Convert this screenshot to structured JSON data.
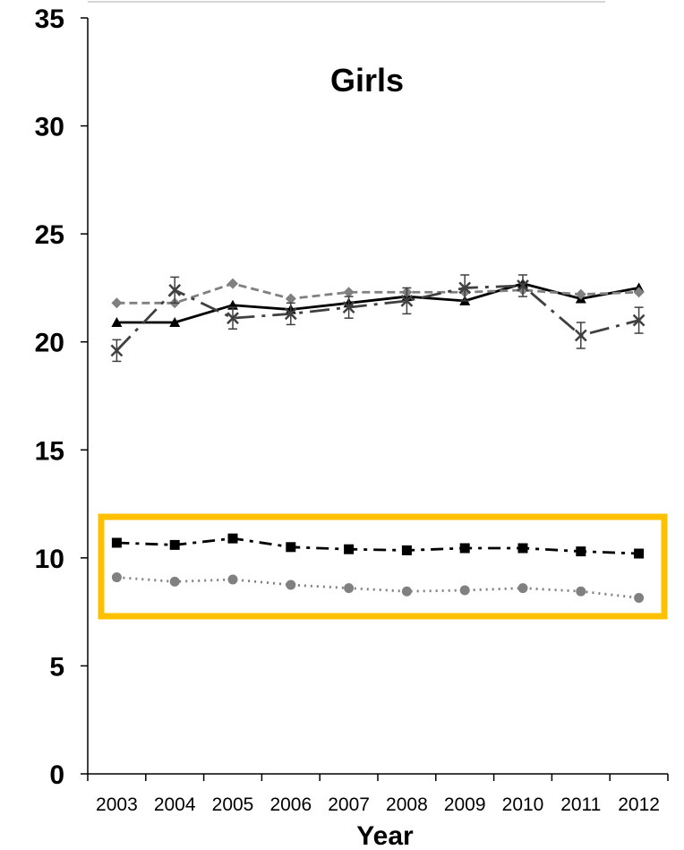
{
  "chart_data": {
    "type": "line",
    "title": "Girls",
    "xlabel": "Year",
    "ylabel": "",
    "ylim": [
      0,
      35
    ],
    "yticks": [
      0,
      5,
      10,
      15,
      20,
      25,
      30,
      35
    ],
    "categories": [
      "2003",
      "2004",
      "2005",
      "2006",
      "2007",
      "2008",
      "2009",
      "2010",
      "2011",
      "2012"
    ],
    "grid": false,
    "legend": "none",
    "highlight_box": {
      "y_range": [
        7.3,
        11.9
      ],
      "color": "#FFC000"
    },
    "series": [
      {
        "marker": "triangle",
        "line_style": "solid",
        "color": "#000000",
        "values": [
          20.9,
          20.9,
          21.7,
          21.5,
          21.8,
          22.1,
          21.9,
          22.7,
          22.0,
          22.5
        ]
      },
      {
        "marker": "diamond",
        "line_style": "dashed",
        "color": "#808080",
        "values": [
          21.8,
          21.8,
          22.7,
          22.0,
          22.3,
          22.3,
          22.3,
          22.4,
          22.2,
          22.3
        ]
      },
      {
        "marker": "x",
        "line_style": "long-dash-dot",
        "color": "#404040",
        "values": [
          19.6,
          22.4,
          21.1,
          21.3,
          21.6,
          21.9,
          22.5,
          22.6,
          20.3,
          21.0
        ],
        "error": [
          0.5,
          0.6,
          0.5,
          0.5,
          0.5,
          0.6,
          0.6,
          0.5,
          0.6,
          0.6
        ]
      },
      {
        "marker": "square",
        "line_style": "dash-dot",
        "color": "#000000",
        "values": [
          10.7,
          10.6,
          10.9,
          10.5,
          10.4,
          10.35,
          10.45,
          10.45,
          10.3,
          10.2
        ]
      },
      {
        "marker": "circle",
        "line_style": "dotted",
        "color": "#808080",
        "values": [
          9.1,
          8.9,
          9.0,
          8.75,
          8.6,
          8.45,
          8.5,
          8.6,
          8.45,
          8.15
        ]
      }
    ]
  }
}
